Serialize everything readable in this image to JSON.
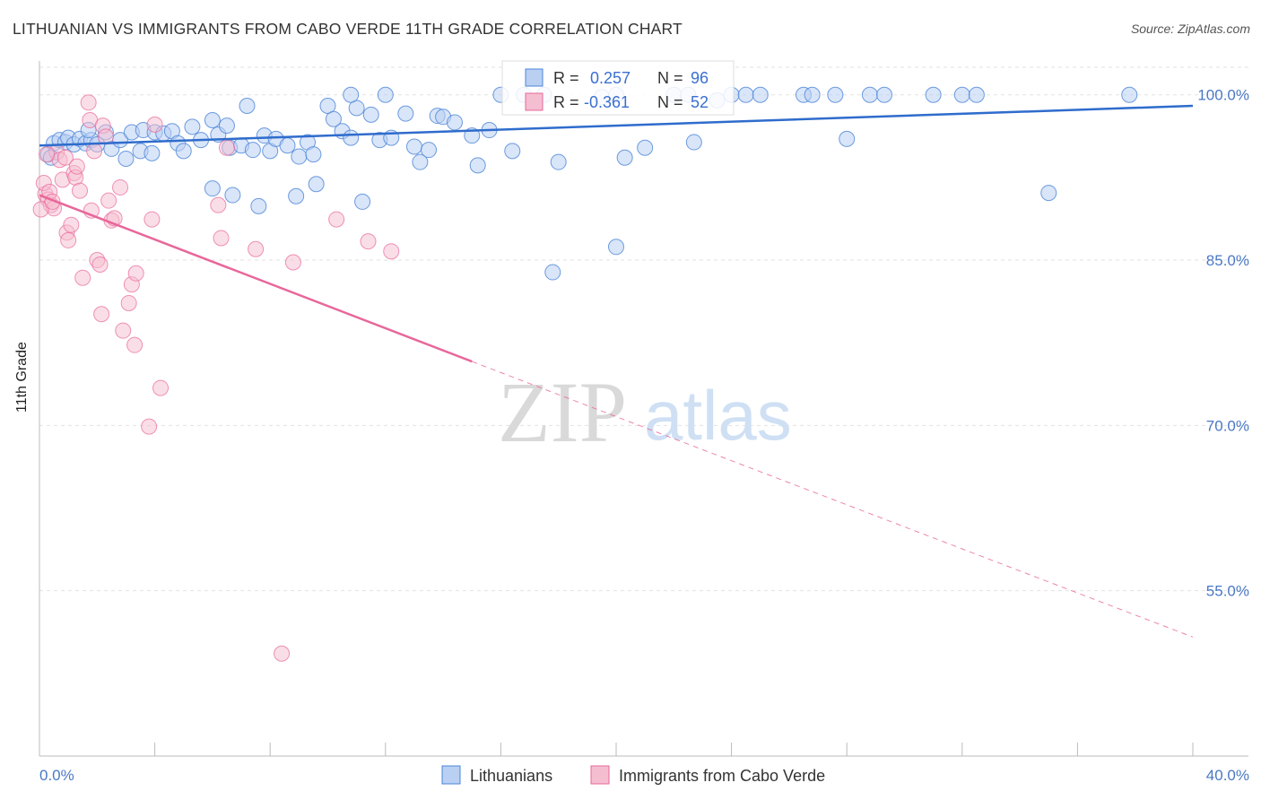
{
  "title": "LITHUANIAN VS IMMIGRANTS FROM CABO VERDE 11TH GRADE CORRELATION CHART",
  "source": "Source: ZipAtlas.com",
  "watermark": {
    "zip": "ZIP",
    "atlas": "atlas"
  },
  "colors": {
    "blue": "#4a84d8",
    "blue_fill": "#b9d0f2",
    "pink": "#e8679a",
    "pink_fill": "#f5bed0",
    "grid": "#e2e2e2",
    "axis_text": "#4a78c4"
  },
  "chart_data": {
    "type": "scatter",
    "title": "LITHUANIAN VS IMMIGRANTS FROM CABO VERDE 11TH GRADE CORRELATION CHART",
    "xlabel": "",
    "ylabel": "11th Grade",
    "xlim": [
      0,
      40
    ],
    "ylim": [
      40,
      102.5
    ],
    "x_tick_labels": [
      "0.0%",
      "40.0%"
    ],
    "y_ticks": [
      100,
      85,
      70,
      55
    ],
    "y_tick_labels": [
      "100.0%",
      "85.0%",
      "70.0%",
      "55.0%"
    ],
    "legend": {
      "r_label": "R =",
      "n_label": "N =",
      "entries": [
        {
          "name": "Lithuanians",
          "r": "0.257",
          "n": "96"
        },
        {
          "name": "Immigrants from Cabo Verde",
          "r": "-0.361",
          "n": "52"
        }
      ]
    },
    "series": [
      {
        "name": "Lithuanians",
        "trend": {
          "x0": 0,
          "y0": 95.4,
          "x1": 40,
          "y1": 99.0
        },
        "points": [
          [
            0.3,
            94.6
          ],
          [
            0.5,
            95.6
          ],
          [
            0.7,
            95.9
          ],
          [
            0.9,
            95.7
          ],
          [
            1.0,
            96.1
          ],
          [
            1.2,
            95.5
          ],
          [
            1.4,
            96.0
          ],
          [
            1.6,
            95.6
          ],
          [
            1.8,
            95.9
          ],
          [
            2.0,
            95.5
          ],
          [
            2.3,
            96.6
          ],
          [
            2.5,
            95.1
          ],
          [
            2.8,
            95.9
          ],
          [
            3.0,
            94.2
          ],
          [
            3.2,
            96.6
          ],
          [
            3.5,
            94.9
          ],
          [
            3.6,
            96.8
          ],
          [
            4.0,
            96.6
          ],
          [
            4.3,
            96.5
          ],
          [
            4.6,
            96.7
          ],
          [
            4.8,
            95.6
          ],
          [
            5.0,
            94.9
          ],
          [
            5.3,
            97.1
          ],
          [
            5.6,
            95.9
          ],
          [
            6.0,
            97.7
          ],
          [
            6.2,
            96.4
          ],
          [
            6.5,
            97.2
          ],
          [
            6.6,
            95.2
          ],
          [
            7.0,
            95.4
          ],
          [
            7.2,
            99.0
          ],
          [
            7.4,
            95.0
          ],
          [
            7.8,
            96.3
          ],
          [
            8.0,
            94.9
          ],
          [
            8.2,
            96.0
          ],
          [
            8.6,
            95.4
          ],
          [
            9.0,
            94.4
          ],
          [
            9.3,
            95.7
          ],
          [
            9.5,
            94.6
          ],
          [
            10.0,
            99.0
          ],
          [
            10.2,
            97.8
          ],
          [
            10.5,
            96.7
          ],
          [
            10.8,
            96.1
          ],
          [
            11.0,
            98.8
          ],
          [
            11.5,
            98.2
          ],
          [
            11.8,
            95.9
          ],
          [
            12.2,
            96.1
          ],
          [
            12.7,
            98.3
          ],
          [
            13.0,
            95.3
          ],
          [
            13.2,
            93.9
          ],
          [
            13.5,
            95.0
          ],
          [
            13.8,
            98.1
          ],
          [
            14.0,
            98.0
          ],
          [
            14.4,
            97.5
          ],
          [
            15.0,
            96.3
          ],
          [
            15.2,
            93.6
          ],
          [
            16.0,
            100.0
          ],
          [
            16.4,
            94.9
          ],
          [
            16.8,
            100.0
          ],
          [
            17.5,
            100.0
          ],
          [
            18.0,
            93.9
          ],
          [
            19.5,
            99.8
          ],
          [
            20.0,
            100.0
          ],
          [
            20.3,
            94.3
          ],
          [
            21.0,
            95.2
          ],
          [
            22.0,
            100.0
          ],
          [
            22.5,
            100.0
          ],
          [
            22.7,
            95.7
          ],
          [
            24.0,
            100.0
          ],
          [
            24.5,
            100.0
          ],
          [
            25.0,
            100.0
          ],
          [
            26.5,
            100.0
          ],
          [
            27.6,
            100.0
          ],
          [
            28.0,
            96.0
          ],
          [
            28.8,
            100.0
          ],
          [
            29.3,
            100.0
          ],
          [
            31.0,
            100.0
          ],
          [
            32.0,
            100.0
          ],
          [
            32.5,
            100.0
          ],
          [
            37.8,
            100.0
          ],
          [
            6.0,
            91.5
          ],
          [
            6.7,
            90.9
          ],
          [
            7.6,
            89.9
          ],
          [
            8.9,
            90.8
          ],
          [
            9.6,
            91.9
          ],
          [
            11.2,
            90.3
          ],
          [
            17.8,
            83.9
          ],
          [
            20.0,
            86.2
          ],
          [
            35.0,
            91.1
          ],
          [
            12.0,
            100.0
          ],
          [
            15.6,
            96.8
          ],
          [
            3.9,
            94.7
          ],
          [
            10.8,
            100.0
          ],
          [
            1.7,
            96.8
          ],
          [
            26.8,
            100.0
          ],
          [
            23.5,
            99.5
          ],
          [
            0.4,
            94.3
          ]
        ]
      },
      {
        "name": "Immigrants from Cabo Verde",
        "trend": {
          "x0": 0,
          "y0": 90.9,
          "x1": 15,
          "y1": 75.8,
          "dash_x1": 40,
          "dash_y1": 50.8
        },
        "points": [
          [
            0.2,
            91.0
          ],
          [
            0.3,
            90.5
          ],
          [
            0.4,
            90.0
          ],
          [
            0.5,
            89.7
          ],
          [
            0.6,
            94.8
          ],
          [
            0.7,
            94.1
          ],
          [
            0.8,
            92.3
          ],
          [
            0.9,
            94.3
          ],
          [
            0.95,
            87.5
          ],
          [
            1.0,
            86.8
          ],
          [
            1.1,
            88.2
          ],
          [
            1.2,
            92.9
          ],
          [
            1.25,
            92.5
          ],
          [
            1.3,
            93.5
          ],
          [
            1.4,
            91.3
          ],
          [
            1.5,
            83.4
          ],
          [
            1.7,
            99.3
          ],
          [
            1.75,
            97.7
          ],
          [
            1.8,
            89.5
          ],
          [
            1.9,
            94.9
          ],
          [
            2.0,
            85.0
          ],
          [
            2.1,
            84.6
          ],
          [
            2.15,
            80.1
          ],
          [
            2.2,
            97.2
          ],
          [
            2.3,
            96.2
          ],
          [
            2.4,
            90.4
          ],
          [
            2.5,
            88.6
          ],
          [
            2.6,
            88.8
          ],
          [
            2.8,
            91.6
          ],
          [
            2.9,
            78.6
          ],
          [
            3.1,
            81.1
          ],
          [
            3.2,
            82.8
          ],
          [
            3.3,
            77.3
          ],
          [
            3.35,
            83.8
          ],
          [
            3.8,
            69.9
          ],
          [
            3.9,
            88.7
          ],
          [
            4.0,
            97.3
          ],
          [
            4.2,
            73.4
          ],
          [
            6.2,
            90.0
          ],
          [
            6.3,
            87.0
          ],
          [
            6.5,
            95.2
          ],
          [
            7.5,
            86.0
          ],
          [
            8.4,
            49.3
          ],
          [
            8.8,
            84.8
          ],
          [
            10.3,
            88.7
          ],
          [
            11.4,
            86.7
          ],
          [
            12.2,
            85.8
          ],
          [
            0.05,
            89.6
          ],
          [
            0.15,
            92.0
          ],
          [
            0.25,
            94.6
          ],
          [
            0.35,
            91.2
          ],
          [
            0.45,
            90.3
          ]
        ]
      }
    ]
  }
}
